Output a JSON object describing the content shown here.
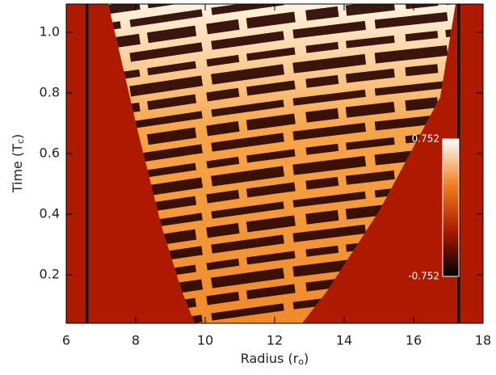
{
  "chart_data": {
    "type": "heatmap",
    "xlabel": {
      "main": "Radius (r",
      "sub": "o",
      "end": ")"
    },
    "ylabel": {
      "main": "Time (T",
      "sub": "c",
      "end": ")"
    },
    "xlim": [
      6,
      18
    ],
    "xticks": [
      6,
      8,
      10,
      12,
      14,
      16,
      18
    ],
    "ylim": [
      0.04,
      1.093
    ],
    "yticks": [
      0.2,
      0.4,
      0.6,
      0.8,
      {
        "value": 1,
        "label": "1.0"
      }
    ],
    "vlines": [
      6.6,
      17.3
    ],
    "background_color": "#ad1a00",
    "colorbar": {
      "min": -0.752,
      "max": 0.752,
      "colors": [
        "#000000",
        "#ad1a00",
        "#f08020",
        "#ffffff"
      ]
    }
  }
}
